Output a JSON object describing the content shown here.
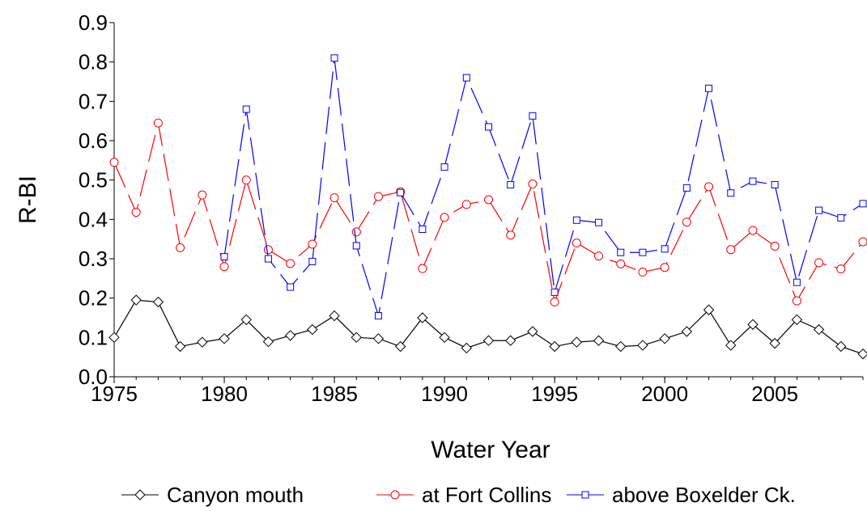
{
  "chart_data": {
    "type": "line",
    "xlabel": "Water Year",
    "ylabel": "R-BI",
    "x": [
      1975,
      1976,
      1977,
      1978,
      1979,
      1980,
      1981,
      1982,
      1983,
      1984,
      1985,
      1986,
      1987,
      1988,
      1989,
      1990,
      1991,
      1992,
      1993,
      1994,
      1995,
      1996,
      1997,
      1998,
      1999,
      2000,
      2001,
      2002,
      2003,
      2004,
      2005,
      2006,
      2007,
      2008,
      2009
    ],
    "xlim": [
      1975,
      2009
    ],
    "xticks": [
      1975,
      1980,
      1985,
      1990,
      1995,
      2000,
      2005
    ],
    "ylim": [
      0,
      0.9
    ],
    "yticks": [
      {
        "value": 0,
        "label": "0.0"
      },
      0.1,
      0.2,
      0.3,
      0.4,
      0.5,
      0.6,
      0.7,
      0.8,
      0.9
    ],
    "legend": "bottom",
    "series": [
      {
        "name": "Canyon mouth",
        "color": "#000000",
        "marker": "diamond",
        "dashed": false,
        "values": [
          0.1,
          0.195,
          0.19,
          0.077,
          0.088,
          0.097,
          0.145,
          0.089,
          0.105,
          0.12,
          0.155,
          0.1,
          0.097,
          0.077,
          0.15,
          0.1,
          0.073,
          0.092,
          0.092,
          0.115,
          0.077,
          0.088,
          0.092,
          0.077,
          0.08,
          0.097,
          0.115,
          0.17,
          0.08,
          0.133,
          0.085,
          0.145,
          0.12,
          0.077,
          0.058
        ]
      },
      {
        "name": "at Fort Collins",
        "color": "#ff0000",
        "marker": "circle",
        "dashed": true,
        "values": [
          0.545,
          0.418,
          0.645,
          0.328,
          0.462,
          0.28,
          0.5,
          0.323,
          0.288,
          0.337,
          0.455,
          0.368,
          0.458,
          0.47,
          0.275,
          0.405,
          0.438,
          0.45,
          0.36,
          0.49,
          0.19,
          0.34,
          0.307,
          0.287,
          0.266,
          0.278,
          0.393,
          0.483,
          0.323,
          0.372,
          0.332,
          0.193,
          0.29,
          0.274,
          0.343
        ]
      },
      {
        "name": "above Boxelder Ck.",
        "color": "#0000ff",
        "marker": "square",
        "dashed": true,
        "values": [
          null,
          null,
          null,
          null,
          null,
          0.305,
          0.68,
          0.3,
          0.228,
          0.293,
          0.81,
          0.333,
          0.155,
          0.468,
          0.375,
          0.533,
          0.76,
          0.635,
          0.488,
          0.663,
          0.215,
          0.398,
          0.392,
          0.316,
          0.316,
          0.325,
          0.48,
          0.733,
          0.467,
          0.497,
          0.488,
          0.24,
          0.423,
          0.404,
          0.44
        ]
      }
    ]
  }
}
